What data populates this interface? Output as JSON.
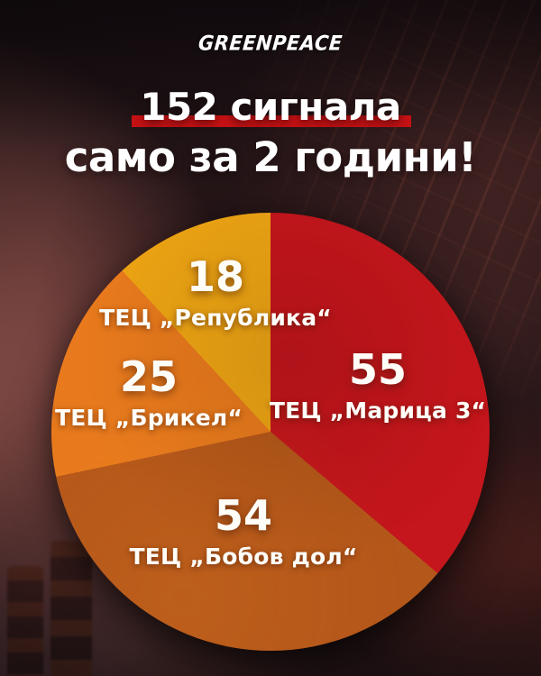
{
  "brand": {
    "logo_text": "GREENPEACE"
  },
  "header": {
    "title_line1": "152 сигнала",
    "title_line2": "само за 2 години!",
    "underline_color": "#c41114"
  },
  "chart_data": {
    "type": "pie",
    "title": "152 сигнала само за 2 години!",
    "total": 152,
    "start_angle_deg": 0,
    "direction": "clockwise",
    "legend_position": "labels-on-slices",
    "slices": [
      {
        "label": "ТЕЦ „Марица 3“",
        "value": 55,
        "color": "#c4161c"
      },
      {
        "label": "ТЕЦ „Бобов дол“",
        "value": 54,
        "color": "#b4571a"
      },
      {
        "label": "ТЕЦ „Брикел“",
        "value": 25,
        "color": "#e87a1d"
      },
      {
        "label": "ТЕЦ „Република“",
        "value": 18,
        "color": "#eda414"
      }
    ]
  }
}
